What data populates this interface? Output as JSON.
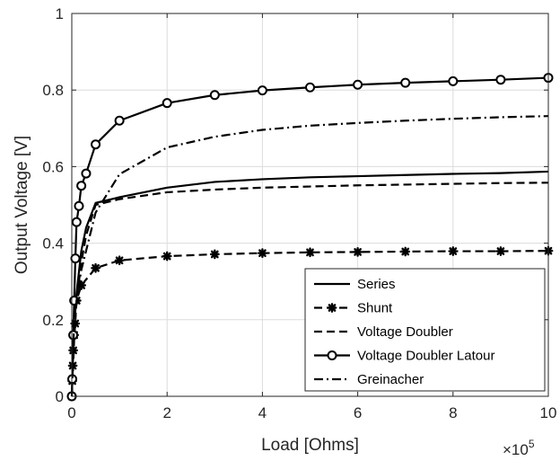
{
  "chart_data": {
    "type": "line",
    "xlabel": "Load [Ohms]",
    "ylabel": "Output Voltage [V]",
    "x_exponent_label": "×10",
    "x_exponent_power": "5",
    "x_scale": 100000,
    "xlim": [
      0,
      1000000
    ],
    "ylim": [
      0,
      1
    ],
    "xticks": [
      0,
      200000,
      400000,
      600000,
      800000,
      1000000
    ],
    "xtick_labels": [
      "0",
      "2",
      "4",
      "6",
      "8",
      "10"
    ],
    "yticks": [
      0,
      0.2,
      0.4,
      0.6,
      0.8,
      1
    ],
    "ytick_labels": [
      "0",
      "0.2",
      "0.4",
      "0.6",
      "0.8",
      "1"
    ],
    "grid": true,
    "legend_position": "bottom-right",
    "colors": {
      "line": "#000000",
      "grid": "#dcdcdc",
      "axis": "#262626"
    },
    "series": [
      {
        "name": "Series",
        "style": "solid",
        "marker": "none",
        "points": [
          [
            0,
            0
          ],
          [
            1000,
            0.05
          ],
          [
            3000,
            0.12
          ],
          [
            5000,
            0.18
          ],
          [
            10000,
            0.27
          ],
          [
            20000,
            0.38
          ],
          [
            30000,
            0.44
          ],
          [
            50000,
            0.505
          ],
          [
            100000,
            0.52
          ],
          [
            200000,
            0.545
          ],
          [
            300000,
            0.56
          ],
          [
            400000,
            0.567
          ],
          [
            500000,
            0.572
          ],
          [
            600000,
            0.575
          ],
          [
            700000,
            0.578
          ],
          [
            800000,
            0.581
          ],
          [
            900000,
            0.583
          ],
          [
            1000000,
            0.587
          ]
        ]
      },
      {
        "name": "Shunt",
        "style": "dashed",
        "marker": "star",
        "points": [
          [
            0,
            0
          ],
          [
            1000,
            0.04
          ],
          [
            2000,
            0.08
          ],
          [
            3000,
            0.12
          ],
          [
            5000,
            0.16
          ],
          [
            7000,
            0.19
          ],
          [
            10000,
            0.25
          ],
          [
            20000,
            0.29
          ],
          [
            50000,
            0.335
          ],
          [
            100000,
            0.355
          ],
          [
            200000,
            0.366
          ],
          [
            300000,
            0.371
          ],
          [
            400000,
            0.374
          ],
          [
            500000,
            0.376
          ],
          [
            600000,
            0.377
          ],
          [
            700000,
            0.378
          ],
          [
            800000,
            0.379
          ],
          [
            900000,
            0.379
          ],
          [
            1000000,
            0.38
          ]
        ]
      },
      {
        "name": "Voltage Doubler",
        "style": "dashed",
        "marker": "none",
        "points": [
          [
            0,
            0
          ],
          [
            2000,
            0.05
          ],
          [
            5000,
            0.15
          ],
          [
            10000,
            0.25
          ],
          [
            20000,
            0.35
          ],
          [
            30000,
            0.42
          ],
          [
            50000,
            0.5
          ],
          [
            100000,
            0.515
          ],
          [
            200000,
            0.533
          ],
          [
            300000,
            0.54
          ],
          [
            400000,
            0.545
          ],
          [
            500000,
            0.548
          ],
          [
            600000,
            0.551
          ],
          [
            700000,
            0.553
          ],
          [
            800000,
            0.555
          ],
          [
            900000,
            0.557
          ],
          [
            1000000,
            0.558
          ]
        ]
      },
      {
        "name": "Voltage Doubler Latour",
        "style": "solid",
        "marker": "circle",
        "points": [
          [
            0,
            0
          ],
          [
            1000,
            0.045
          ],
          [
            3000,
            0.16
          ],
          [
            5000,
            0.25
          ],
          [
            7500,
            0.36
          ],
          [
            10000,
            0.455
          ],
          [
            15000,
            0.497
          ],
          [
            20000,
            0.55
          ],
          [
            30000,
            0.582
          ],
          [
            50000,
            0.658
          ],
          [
            100000,
            0.72
          ],
          [
            200000,
            0.766
          ],
          [
            300000,
            0.787
          ],
          [
            400000,
            0.799
          ],
          [
            500000,
            0.807
          ],
          [
            600000,
            0.814
          ],
          [
            700000,
            0.819
          ],
          [
            800000,
            0.823
          ],
          [
            900000,
            0.827
          ],
          [
            1000000,
            0.832
          ]
        ]
      },
      {
        "name": "Greinacher",
        "style": "dashdot",
        "marker": "none",
        "points": [
          [
            0,
            0
          ],
          [
            5000,
            0.2
          ],
          [
            10000,
            0.25
          ],
          [
            20000,
            0.33
          ],
          [
            50000,
            0.48
          ],
          [
            100000,
            0.58
          ],
          [
            200000,
            0.65
          ],
          [
            300000,
            0.678
          ],
          [
            400000,
            0.696
          ],
          [
            500000,
            0.707
          ],
          [
            600000,
            0.714
          ],
          [
            700000,
            0.72
          ],
          [
            800000,
            0.725
          ],
          [
            900000,
            0.729
          ],
          [
            1000000,
            0.732
          ]
        ]
      }
    ]
  }
}
